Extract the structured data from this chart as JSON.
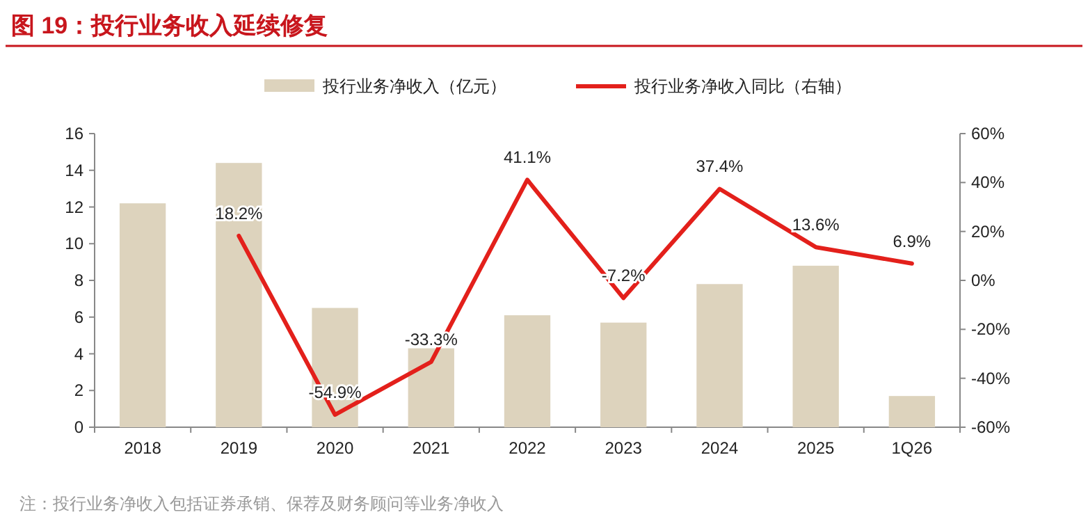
{
  "chart_data": {
    "type": "bar",
    "title": "图 19：投行业务收入延续修复",
    "categories": [
      "2018",
      "2019",
      "2020",
      "2021",
      "2022",
      "2023",
      "2024",
      "2025",
      "1Q26"
    ],
    "series": [
      {
        "name": "投行业务净收入（亿元）",
        "color": "#ddd3bd",
        "values": [
          12.2,
          14.4,
          6.5,
          4.3,
          6.1,
          5.7,
          7.8,
          8.8,
          1.7
        ]
      },
      {
        "name": "投行业务净收入同比（右轴）",
        "type": "line",
        "axis": "y2",
        "color": "#e3201b",
        "values": [
          null,
          18.2,
          -54.9,
          -33.3,
          41.1,
          -7.2,
          37.4,
          13.6,
          6.9
        ],
        "value_labels": [
          null,
          "18.2%",
          "-54.9%",
          "-33.3%",
          "41.1%",
          "-7.2%",
          "37.4%",
          "13.6%",
          "6.9%"
        ]
      }
    ],
    "ylim": [
      0,
      16
    ],
    "yticks": [
      0,
      2,
      4,
      6,
      8,
      10,
      12,
      14,
      16
    ],
    "y2lim": [
      -60,
      60
    ],
    "y2ticks": [
      {
        "value": -60,
        "label": "-60%"
      },
      {
        "value": -40,
        "label": "-40%"
      },
      {
        "value": -20,
        "label": "-20%"
      },
      {
        "value": 0,
        "label": "0%"
      },
      {
        "value": 20,
        "label": "20%"
      },
      {
        "value": 40,
        "label": "40%"
      },
      {
        "value": 60,
        "label": "60%"
      }
    ],
    "legend": "top",
    "annotations": [
      "注：投行业务净收入包括证券承销、保荐及财务顾问等业务净收入"
    ]
  }
}
